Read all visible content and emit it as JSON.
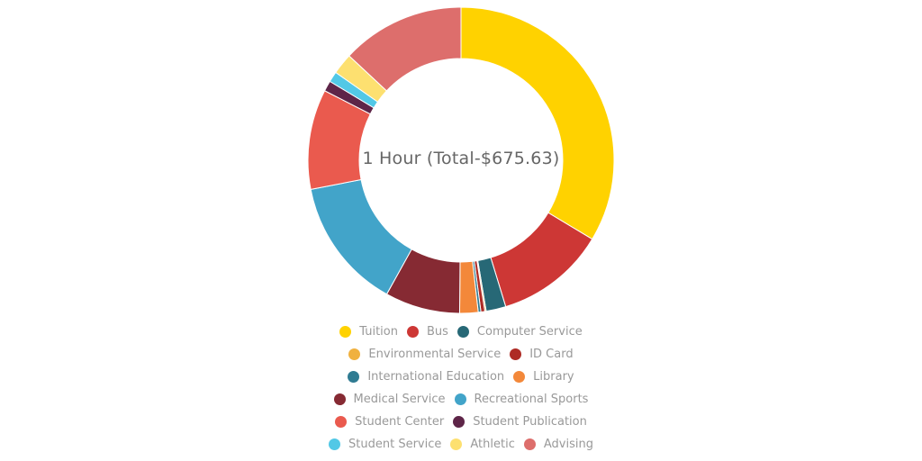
{
  "chart_data": {
    "type": "pie",
    "subtype": "donut",
    "title": "1 Hour (Total-$675.63)",
    "total": 675.63,
    "categories": [
      "Tuition",
      "Bus",
      "Computer Service",
      "Environmental Service",
      "ID Card",
      "International Education",
      "Library",
      "Medical Service",
      "Recreational Sports",
      "Student Center",
      "Student Publication",
      "Student Service",
      "Athletic",
      "Advising"
    ],
    "values": [
      227.1,
      78.83,
      14.08,
      0.94,
      2.82,
      1.88,
      13.14,
      53.49,
      93.84,
      71.32,
      7.51,
      7.51,
      15.01,
      88.16
    ],
    "colors": [
      "#FFD200",
      "#CD3735",
      "#276876",
      "#F0B13F",
      "#AE2B25",
      "#2F7B92",
      "#F3883A",
      "#862A33",
      "#42A4C9",
      "#EA5A4E",
      "#5E2548",
      "#52C8E6",
      "#FDE070",
      "#DD6E6C"
    ],
    "legend_position": "bottom",
    "start_angle": "12 o'clock, clockwise"
  },
  "center_label": "1 Hour (Total-$675.63)",
  "legend": {
    "rows": [
      [
        {
          "label": "Tuition",
          "color": "#FFD200"
        },
        {
          "label": "Bus",
          "color": "#CD3735"
        },
        {
          "label": "Computer Service",
          "color": "#276876"
        }
      ],
      [
        {
          "label": "Environmental Service",
          "color": "#F0B13F"
        },
        {
          "label": "ID Card",
          "color": "#AE2B25"
        }
      ],
      [
        {
          "label": "International Education",
          "color": "#2F7B92"
        },
        {
          "label": "Library",
          "color": "#F3883A"
        }
      ],
      [
        {
          "label": "Medical Service",
          "color": "#862A33"
        },
        {
          "label": "Recreational Sports",
          "color": "#42A4C9"
        }
      ],
      [
        {
          "label": "Student Center",
          "color": "#EA5A4E"
        },
        {
          "label": "Student Publication",
          "color": "#5E2548"
        }
      ],
      [
        {
          "label": "Student Service",
          "color": "#52C8E6"
        },
        {
          "label": "Athletic",
          "color": "#FDE070"
        },
        {
          "label": "Advising",
          "color": "#DD6E6C"
        }
      ]
    ]
  }
}
